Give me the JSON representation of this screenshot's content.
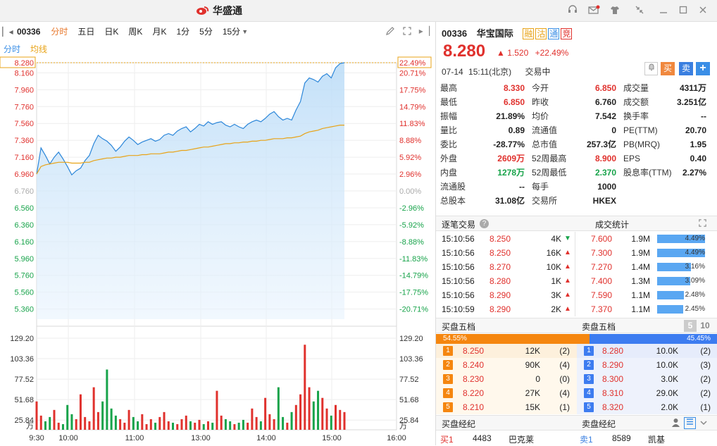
{
  "app": {
    "name": "华盛通"
  },
  "toolbar": {
    "code": "00336",
    "tabs": [
      "分时",
      "五日",
      "日K",
      "周K",
      "月K",
      "1分",
      "5分",
      "15分"
    ],
    "active_tab": 0
  },
  "subtabs": {
    "intraday": "分时",
    "avg": "均线"
  },
  "stock": {
    "code": "00336",
    "name": "华宝国际",
    "tags": [
      "融",
      "沽",
      "通",
      "竞"
    ],
    "price": "8.280",
    "change": "1.520",
    "pct": "+22.49%",
    "date": "07-14",
    "time": "15:11(北京)",
    "status": "交易中",
    "buy_label": "买",
    "sell_label": "卖",
    "plus_label": "+"
  },
  "quote": [
    [
      [
        "最高",
        "8.330",
        "red"
      ],
      [
        "今开",
        "6.850",
        "red"
      ],
      [
        "成交量",
        "4311万",
        "black"
      ]
    ],
    [
      [
        "最低",
        "6.850",
        "red"
      ],
      [
        "昨收",
        "6.760",
        "black"
      ],
      [
        "成交额",
        "3.251亿",
        "black"
      ]
    ],
    [
      [
        "振幅",
        "21.89%",
        "black"
      ],
      [
        "均价",
        "7.542",
        "black"
      ],
      [
        "换手率",
        "--",
        "black"
      ]
    ],
    [
      [
        "量比",
        "0.89",
        "black"
      ],
      [
        "流通值",
        "0",
        "black"
      ],
      [
        "PE(TTM)",
        "20.70",
        "black"
      ]
    ],
    [
      [
        "委比",
        "-28.77%",
        "black"
      ],
      [
        "总市值",
        "257.3亿",
        "black"
      ],
      [
        "PB(MRQ)",
        "1.95",
        "black"
      ]
    ],
    [
      [
        "外盘",
        "2609万",
        "red"
      ],
      [
        "52周最高",
        "8.900",
        "red"
      ],
      [
        "EPS",
        "0.40",
        "black"
      ]
    ],
    [
      [
        "内盘",
        "1278万",
        "green"
      ],
      [
        "52周最低",
        "2.370",
        "green"
      ],
      [
        "股息率(TTM)",
        "2.27%",
        "black"
      ]
    ],
    [
      [
        "流通股",
        "--",
        "black"
      ],
      [
        "每手",
        "1000",
        "black"
      ],
      [
        "",
        "",
        " black"
      ]
    ],
    [
      [
        "总股本",
        "31.08亿",
        "black"
      ],
      [
        "交易所",
        "HKEX",
        "black"
      ],
      [
        "",
        "",
        "black"
      ]
    ]
  ],
  "trades": {
    "title": "逐笔交易",
    "stats_title": "成交统计",
    "rows": [
      [
        "15:10:56",
        "8.250",
        "4K",
        "down"
      ],
      [
        "15:10:56",
        "8.250",
        "16K",
        "up"
      ],
      [
        "15:10:56",
        "8.270",
        "10K",
        "up"
      ],
      [
        "15:10:56",
        "8.280",
        "1K",
        "up"
      ],
      [
        "15:10:56",
        "8.290",
        "3K",
        "up"
      ],
      [
        "15:10:59",
        "8.290",
        "2K",
        "up"
      ]
    ],
    "stats": [
      [
        "7.600",
        "1.9M",
        "4.49%",
        4.49
      ],
      [
        "7.300",
        "1.9M",
        "4.49%",
        4.49
      ],
      [
        "7.270",
        "1.4M",
        "3.16%",
        3.16
      ],
      [
        "7.400",
        "1.3M",
        "3.09%",
        3.09
      ],
      [
        "7.590",
        "1.1M",
        "2.48%",
        2.48
      ],
      [
        "7.370",
        "1.1M",
        "2.45%",
        2.45
      ]
    ]
  },
  "orderbook": {
    "bid_title": "买盘五档",
    "ask_title": "卖盘五档",
    "depth5": "5",
    "depth10": "10",
    "bid_pct": "54.55%",
    "ask_pct": "45.45%",
    "bid_ratio": 0.5455,
    "bids": [
      [
        "1",
        "8.250",
        "12K",
        "(2)"
      ],
      [
        "2",
        "8.240",
        "90K",
        "(4)"
      ],
      [
        "3",
        "8.230",
        "0",
        "(0)"
      ],
      [
        "4",
        "8.220",
        "27K",
        "(4)"
      ],
      [
        "5",
        "8.210",
        "15K",
        "(1)"
      ]
    ],
    "asks": [
      [
        "1",
        "8.280",
        "10.0K",
        "(2)"
      ],
      [
        "2",
        "8.290",
        "10.0K",
        "(3)"
      ],
      [
        "3",
        "8.300",
        "3.0K",
        "(2)"
      ],
      [
        "4",
        "8.310",
        "29.0K",
        "(2)"
      ],
      [
        "5",
        "8.320",
        "2.0K",
        "(1)"
      ]
    ]
  },
  "brokers": {
    "buy_title": "买盘经纪",
    "sell_title": "卖盘经纪",
    "buy_row": [
      "买1",
      "4483",
      "巴克莱"
    ],
    "sell_row": [
      "卖1",
      "8589",
      "凯基"
    ]
  },
  "chart_data": {
    "type": "line",
    "title": "",
    "price_axis": [
      "8.280",
      "8.160",
      "7.960",
      "7.760",
      "7.560",
      "7.360",
      "7.160",
      "6.960",
      "6.760",
      "6.560",
      "6.360",
      "6.160",
      "5.960",
      "5.760",
      "5.560",
      "5.360"
    ],
    "pct_axis": [
      "22.49%",
      "20.71%",
      "17.75%",
      "14.79%",
      "11.83%",
      "8.88%",
      "5.92%",
      "2.96%",
      "0.00%",
      "-2.96%",
      "-5.92%",
      "-8.88%",
      "-11.83%",
      "-14.79%",
      "-17.75%",
      "-20.71%"
    ],
    "x_ticks": [
      "9:30",
      "10:00",
      "11:00",
      "13:00",
      "14:00",
      "15:00",
      "16:00"
    ],
    "vol_axis": [
      "129.20",
      "103.36",
      "77.52",
      "51.68",
      "25.84",
      "万"
    ],
    "ylim": [
      5.24,
      8.28
    ],
    "prev_close": 6.76,
    "series": [
      {
        "name": "分时",
        "values": [
          6.96,
          7.27,
          7.18,
          7.08,
          7.16,
          7.22,
          7.14,
          7.05,
          6.95,
          7.0,
          7.03,
          7.12,
          7.18,
          7.32,
          7.42,
          7.38,
          7.35,
          7.3,
          7.23,
          7.28,
          7.35,
          7.4,
          7.36,
          7.31,
          7.34,
          7.36,
          7.38,
          7.35,
          7.37,
          7.42,
          7.44,
          7.42,
          7.47,
          7.5,
          7.52,
          7.46,
          7.5,
          7.55,
          7.53,
          7.58,
          7.55,
          7.57,
          7.58,
          7.54,
          7.52,
          7.55,
          7.52,
          7.5,
          7.55,
          7.58,
          7.6,
          7.58,
          7.62,
          7.67,
          7.7,
          7.64,
          7.6,
          7.62,
          7.6,
          7.72,
          7.82,
          8.04,
          8.1,
          8.08,
          8.05,
          8.12,
          8.15,
          8.1,
          8.22,
          8.27,
          8.28
        ]
      },
      {
        "name": "均线",
        "values": [
          6.96,
          7.05,
          7.07,
          7.08,
          7.09,
          7.1,
          7.1,
          7.1,
          7.09,
          7.09,
          7.09,
          7.1,
          7.1,
          7.12,
          7.13,
          7.14,
          7.15,
          7.15,
          7.16,
          7.16,
          7.17,
          7.18,
          7.18,
          7.18,
          7.19,
          7.19,
          7.2,
          7.2,
          7.2,
          7.21,
          7.22,
          7.22,
          7.23,
          7.24,
          7.24,
          7.25,
          7.26,
          7.27,
          7.28,
          7.28,
          7.29,
          7.3,
          7.31,
          7.32,
          7.32,
          7.33,
          7.33,
          7.34,
          7.34,
          7.35,
          7.35,
          7.36,
          7.36,
          7.37,
          7.38,
          7.38,
          7.38,
          7.39,
          7.39,
          7.4,
          7.41,
          7.44,
          7.46,
          7.47,
          7.48,
          7.5,
          7.51,
          7.52,
          7.53,
          7.54,
          7.54
        ]
      },
      {
        "name": "成交量",
        "values": [
          40,
          20,
          12,
          18,
          28,
          10,
          8,
          35,
          22,
          15,
          50,
          18,
          12,
          60,
          25,
          40,
          85,
          30,
          20,
          15,
          10,
          28,
          18,
          12,
          22,
          8,
          15,
          10,
          18,
          25,
          12,
          10,
          8,
          15,
          20,
          12,
          10,
          14,
          8,
          12,
          10,
          55,
          20,
          15,
          12,
          8,
          10,
          14,
          10,
          30,
          18,
          12,
          45,
          22,
          15,
          60,
          18,
          10,
          25,
          35,
          50,
          120,
          60,
          40,
          55,
          45,
          30,
          20,
          35,
          28,
          25
        ]
      }
    ]
  }
}
